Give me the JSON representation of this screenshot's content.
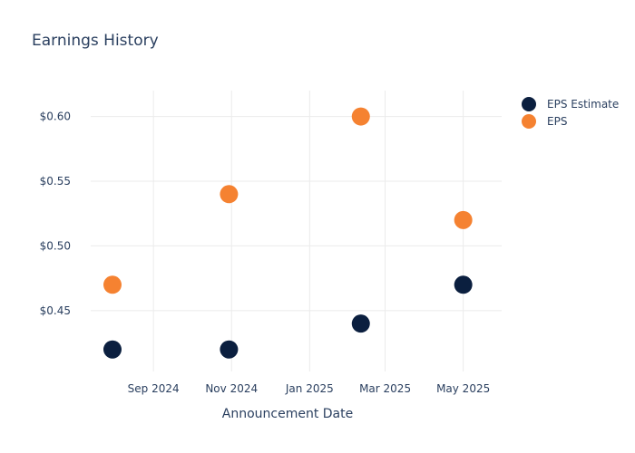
{
  "chart_data": {
    "type": "scatter",
    "title": "Earnings History",
    "xlabel": "Announcement Date",
    "ylabel": "",
    "x_ticks": [
      "Sep 2024",
      "Nov 2024",
      "Jan 2025",
      "Mar 2025",
      "May 2025"
    ],
    "y_ticks": [
      "$0.45",
      "$0.50",
      "$0.55",
      "$0.60"
    ],
    "ylim": [
      0.403,
      0.62
    ],
    "xlim": [
      "2024-07-14",
      "2025-05-31"
    ],
    "grid": true,
    "legend_position": "top-right",
    "series": [
      {
        "name": "EPS Estimate",
        "color": "#0b1f3f",
        "points": [
          {
            "x": "2024-07-31",
            "y": 0.42
          },
          {
            "x": "2024-10-30",
            "y": 0.42
          },
          {
            "x": "2025-02-10",
            "y": 0.44
          },
          {
            "x": "2025-05-01",
            "y": 0.47
          }
        ]
      },
      {
        "name": "EPS",
        "color": "#f58231",
        "points": [
          {
            "x": "2024-07-31",
            "y": 0.47
          },
          {
            "x": "2024-10-30",
            "y": 0.54
          },
          {
            "x": "2025-02-10",
            "y": 0.6
          },
          {
            "x": "2025-05-01",
            "y": 0.52
          }
        ]
      }
    ]
  }
}
